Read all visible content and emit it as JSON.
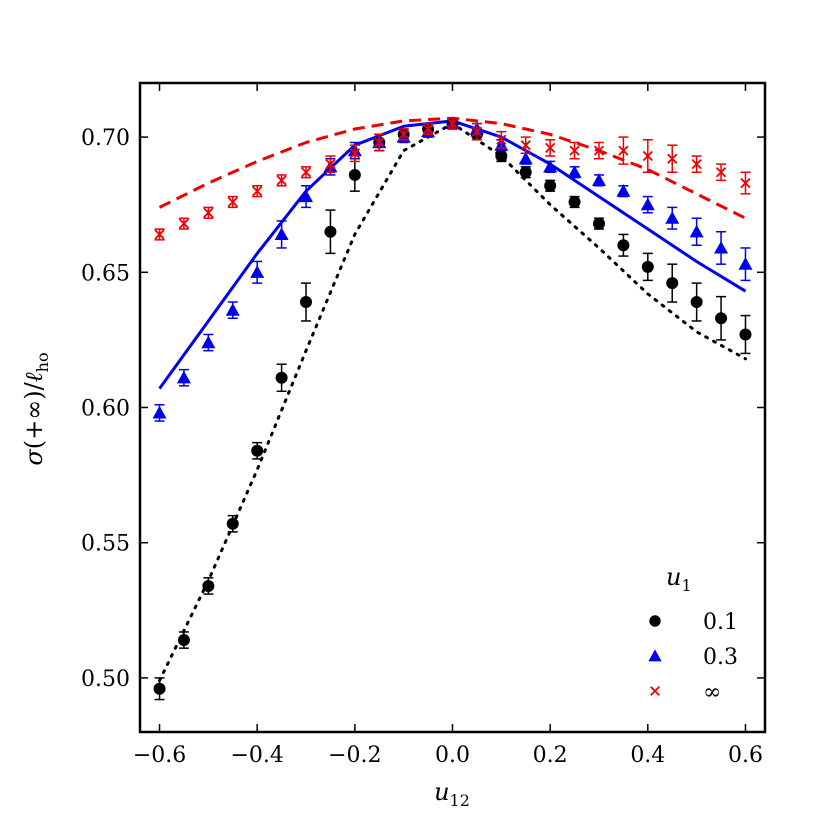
{
  "chart_data": {
    "type": "scatter",
    "title": "",
    "xlabel": "u12",
    "ylabel": "σ(+∞)/ℓho",
    "xlim": [
      -0.64,
      0.64
    ],
    "ylim": [
      0.48,
      0.72
    ],
    "xticks": [
      -0.6,
      -0.4,
      -0.2,
      0.0,
      0.2,
      0.4,
      0.6
    ],
    "yticks": [
      0.5,
      0.55,
      0.6,
      0.65,
      0.7
    ],
    "xtick_labels": [
      "−0.6",
      "−0.4",
      "−0.2",
      "0.0",
      "0.2",
      "0.4",
      "0.6"
    ],
    "ytick_labels": [
      "0.50",
      "0.55",
      "0.60",
      "0.65",
      "0.70"
    ],
    "legend": {
      "title": "u1",
      "placement": "bottom-right",
      "entries": [
        "0.1",
        "0.3",
        "∞"
      ]
    },
    "series": [
      {
        "name": "0.1",
        "color": "#000000",
        "marker": "circle",
        "x": [
          -0.6,
          -0.55,
          -0.5,
          -0.45,
          -0.4,
          -0.35,
          -0.3,
          -0.25,
          -0.2,
          -0.15,
          -0.1,
          -0.05,
          0.0,
          0.05,
          0.1,
          0.15,
          0.2,
          0.25,
          0.3,
          0.35,
          0.4,
          0.45,
          0.5,
          0.55,
          0.6
        ],
        "y": [
          0.496,
          0.514,
          0.534,
          0.557,
          0.584,
          0.611,
          0.639,
          0.665,
          0.686,
          0.698,
          0.701,
          0.703,
          0.705,
          0.701,
          0.693,
          0.687,
          0.682,
          0.676,
          0.668,
          0.66,
          0.652,
          0.646,
          0.639,
          0.633,
          0.627
        ],
        "err": [
          0.004,
          0.003,
          0.003,
          0.003,
          0.003,
          0.005,
          0.007,
          0.008,
          0.006,
          0.003,
          0.002,
          0.002,
          0.002,
          0.002,
          0.002,
          0.002,
          0.002,
          0.002,
          0.002,
          0.004,
          0.005,
          0.007,
          0.007,
          0.008,
          0.007
        ]
      },
      {
        "name": "0.3",
        "color": "#0000ee",
        "marker": "triangle",
        "x": [
          -0.6,
          -0.55,
          -0.5,
          -0.45,
          -0.4,
          -0.35,
          -0.3,
          -0.25,
          -0.2,
          -0.15,
          -0.1,
          -0.05,
          0.0,
          0.05,
          0.1,
          0.15,
          0.2,
          0.25,
          0.3,
          0.35,
          0.4,
          0.45,
          0.5,
          0.55,
          0.6
        ],
        "y": [
          0.598,
          0.611,
          0.624,
          0.636,
          0.65,
          0.664,
          0.678,
          0.689,
          0.695,
          0.698,
          0.7,
          0.702,
          0.705,
          0.703,
          0.697,
          0.692,
          0.689,
          0.687,
          0.684,
          0.68,
          0.675,
          0.67,
          0.665,
          0.659,
          0.653
        ],
        "err": [
          0.003,
          0.003,
          0.003,
          0.003,
          0.004,
          0.005,
          0.004,
          0.003,
          0.003,
          0.003,
          0.002,
          0.002,
          0.002,
          0.002,
          0.002,
          0.002,
          0.002,
          0.002,
          0.002,
          0.002,
          0.003,
          0.004,
          0.005,
          0.006,
          0.006
        ]
      },
      {
        "name": "∞",
        "color": "#ee0000",
        "marker": "x",
        "x": [
          -0.6,
          -0.55,
          -0.5,
          -0.45,
          -0.4,
          -0.35,
          -0.3,
          -0.25,
          -0.2,
          -0.15,
          -0.1,
          -0.05,
          0.0,
          0.05,
          0.1,
          0.15,
          0.2,
          0.25,
          0.3,
          0.35,
          0.4,
          0.45,
          0.5,
          0.55,
          0.6
        ],
        "y": [
          0.664,
          0.668,
          0.672,
          0.676,
          0.68,
          0.684,
          0.687,
          0.69,
          0.694,
          0.698,
          0.701,
          0.703,
          0.705,
          0.702,
          0.699,
          0.697,
          0.696,
          0.695,
          0.695,
          0.695,
          0.693,
          0.692,
          0.69,
          0.687,
          0.683
        ],
        "err": [
          0.002,
          0.002,
          0.002,
          0.002,
          0.002,
          0.002,
          0.002,
          0.003,
          0.003,
          0.003,
          0.002,
          0.002,
          0.002,
          0.003,
          0.003,
          0.003,
          0.003,
          0.003,
          0.003,
          0.005,
          0.006,
          0.005,
          0.003,
          0.003,
          0.004
        ]
      }
    ],
    "curves": [
      {
        "name": "0.1 theory",
        "color": "#000000",
        "style": "dotted",
        "x": [
          -0.6,
          -0.5,
          -0.4,
          -0.3,
          -0.2,
          -0.1,
          0.0,
          0.1,
          0.2,
          0.3,
          0.4,
          0.5,
          0.6
        ],
        "y": [
          0.499,
          0.536,
          0.577,
          0.621,
          0.664,
          0.695,
          0.705,
          0.693,
          0.675,
          0.659,
          0.642,
          0.628,
          0.618
        ]
      },
      {
        "name": "0.3 theory",
        "color": "#0000ee",
        "style": "solid",
        "x": [
          -0.6,
          -0.5,
          -0.4,
          -0.3,
          -0.2,
          -0.1,
          0.0,
          0.1,
          0.2,
          0.3,
          0.4,
          0.5,
          0.6
        ],
        "y": [
          0.607,
          0.632,
          0.657,
          0.68,
          0.697,
          0.704,
          0.706,
          0.7,
          0.69,
          0.678,
          0.666,
          0.654,
          0.643
        ]
      },
      {
        "name": "∞ theory",
        "color": "#ee0000",
        "style": "dashed",
        "x": [
          -0.6,
          -0.5,
          -0.4,
          -0.3,
          -0.2,
          -0.1,
          0.0,
          0.1,
          0.2,
          0.3,
          0.4,
          0.5,
          0.6
        ],
        "y": [
          0.674,
          0.683,
          0.691,
          0.698,
          0.703,
          0.706,
          0.707,
          0.705,
          0.701,
          0.695,
          0.688,
          0.679,
          0.67
        ]
      }
    ]
  }
}
